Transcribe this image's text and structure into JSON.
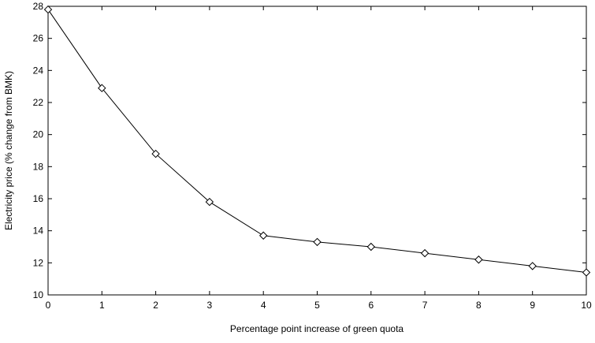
{
  "chart_data": {
    "type": "line",
    "title": "",
    "xlabel": "Percentage point increase of green quota",
    "ylabel": "Electricity price (% change from BMK)",
    "xlim": [
      0,
      10
    ],
    "ylim": [
      10,
      28
    ],
    "xticks": [
      0,
      1,
      2,
      3,
      4,
      5,
      6,
      7,
      8,
      9,
      10
    ],
    "yticks": [
      10,
      12,
      14,
      16,
      18,
      20,
      22,
      24,
      26,
      28
    ],
    "grid": false,
    "legend": "none",
    "marker": "diamond",
    "line_color": "#000000",
    "series": [
      {
        "x": [
          0,
          1,
          2,
          3,
          4,
          5,
          6,
          7,
          8,
          9,
          10
        ],
        "values": [
          27.8,
          22.9,
          18.8,
          15.8,
          13.7,
          13.3,
          13.0,
          12.6,
          12.2,
          11.8,
          11.4
        ]
      }
    ]
  }
}
